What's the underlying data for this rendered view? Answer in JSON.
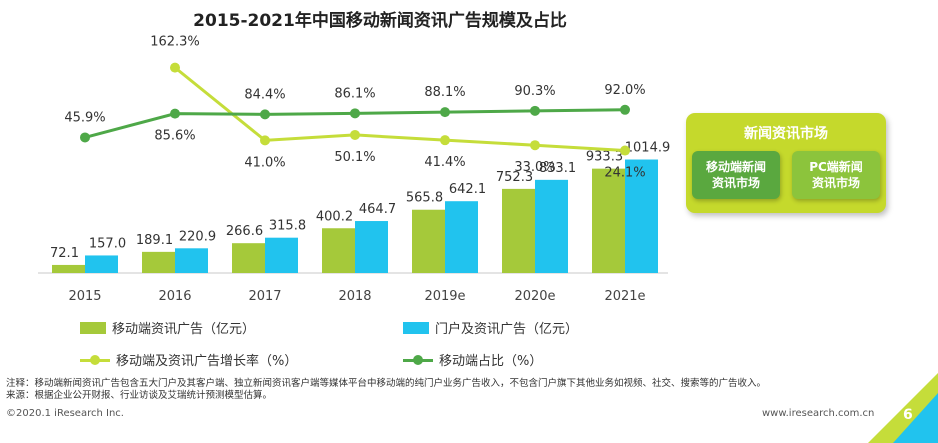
{
  "chart_data": {
    "type": "bar",
    "title": "2015-2021年中国移动新闻资讯广告规模及占比",
    "categories": [
      "2015",
      "2016",
      "2017",
      "2018",
      "2019e",
      "2020e",
      "2021e"
    ],
    "series": [
      {
        "name": "移动端资讯广告（亿元）",
        "type": "bar",
        "color": "#a5c93a",
        "values": [
          72.1,
          189.1,
          266.6,
          400.2,
          565.8,
          752.3,
          933.3
        ]
      },
      {
        "name": "门户及资讯广告（亿元）",
        "type": "bar",
        "color": "#21c3ee",
        "values": [
          157.0,
          220.9,
          315.8,
          464.7,
          642.1,
          833.1,
          1014.9
        ]
      },
      {
        "name": "移动端及资讯广告增长率（%）",
        "type": "line",
        "color": "#c5dd3a",
        "values": [
          null,
          162.3,
          41.0,
          50.1,
          41.4,
          33.0,
          24.1
        ],
        "labels": [
          "",
          "162.3%",
          "41.0%",
          "50.1%",
          "41.4%",
          "33.0%",
          "24.1%"
        ]
      },
      {
        "name": "移动端占比（%）",
        "type": "line",
        "color": "#4ea848",
        "values": [
          45.9,
          85.6,
          84.4,
          86.1,
          88.1,
          90.3,
          92.0
        ],
        "labels": [
          "45.9%",
          "85.6%",
          "84.4%",
          "86.1%",
          "88.1%",
          "90.3%",
          "92.0%"
        ]
      }
    ],
    "bar_labels": {
      "mobile": [
        "72.1",
        "189.1",
        "266.6",
        "400.2",
        "565.8",
        "752.3",
        "933.3"
      ],
      "portal": [
        "157.0",
        "220.9",
        "315.8",
        "464.7",
        "642.1",
        "833.1",
        "1014.9"
      ]
    },
    "bar_ylim": [
      0,
      1100
    ],
    "line_ylim": [
      0,
      175
    ],
    "grid": false,
    "legend": "bottom"
  },
  "side_box": {
    "title": "新闻资讯市场",
    "left": "移动端新闻\n资讯市场",
    "right": "PC端新闻\n资讯市场"
  },
  "footer": {
    "note_line1": "注释：移动端新闻资讯广告包含五大门户及其客户端、独立新闻资讯客户端等媒体平台中移动端的纯门户业务广告收入，不包含门户旗下其他业务如视频、社交、搜索等的广告收入。",
    "note_line2": "来源：根据企业公开财报、行业访谈及艾瑞统计预测模型估算。",
    "copyright": "©2020.1 iResearch Inc.",
    "website": "www.iresearch.com.cn",
    "page": "6"
  }
}
